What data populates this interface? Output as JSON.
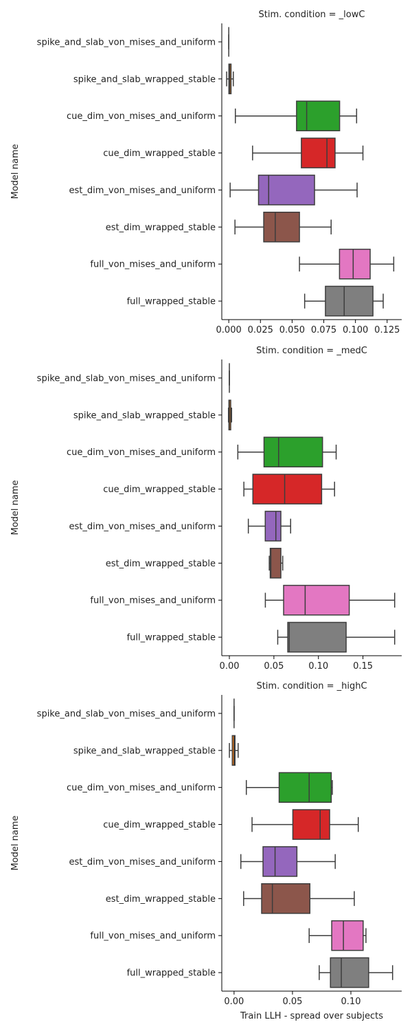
{
  "figure": {
    "ylabel": "Model name",
    "xlabel": "Train LLH - spread over subjects"
  },
  "colors": [
    "#1f77b4",
    "#ff7f0e",
    "#2ca02c",
    "#d62728",
    "#9467bd",
    "#8c564b",
    "#e377c2",
    "#7f7f7f"
  ],
  "chart_data": [
    {
      "type": "box",
      "title": "Stim. condition = _lowC",
      "ylabel": "Model name",
      "xlabel": "",
      "categories": [
        "spike_and_slab_von_mises_and_uniform",
        "spike_and_slab_wrapped_stable",
        "cue_dim_von_mises_and_uniform",
        "cue_dim_wrapped_stable",
        "est_dim_von_mises_and_uniform",
        "est_dim_wrapped_stable",
        "full_von_mises_and_uniform",
        "full_wrapped_stable"
      ],
      "xlim": [
        -0.0055,
        0.1365
      ],
      "xticks": [
        0.0,
        0.025,
        0.05,
        0.075,
        0.1,
        0.125
      ],
      "xtick_labels": [
        "0.000",
        "0.025",
        "0.050",
        "0.075",
        "0.100",
        "0.125"
      ],
      "boxes": [
        {
          "whislo": 0.0,
          "q1": 0.0,
          "med": 0.0,
          "q3": 0.0,
          "whishi": 0.0
        },
        {
          "whislo": -0.0017,
          "q1": 0.0001,
          "med": 0.0008,
          "q3": 0.0018,
          "whishi": 0.0036
        },
        {
          "whislo": 0.0052,
          "q1": 0.0535,
          "med": 0.0615,
          "q3": 0.0875,
          "whishi": 0.1009
        },
        {
          "whislo": 0.0188,
          "q1": 0.0573,
          "med": 0.0775,
          "q3": 0.0839,
          "whishi": 0.1059
        },
        {
          "whislo": 0.0011,
          "q1": 0.0235,
          "med": 0.0315,
          "q3": 0.0677,
          "whishi": 0.1013
        },
        {
          "whislo": 0.0049,
          "q1": 0.0276,
          "med": 0.0367,
          "q3": 0.0558,
          "whishi": 0.0808
        },
        {
          "whislo": 0.0558,
          "q1": 0.0874,
          "med": 0.0982,
          "q3": 0.1116,
          "whishi": 0.1302
        },
        {
          "whislo": 0.0599,
          "q1": 0.0763,
          "med": 0.0911,
          "q3": 0.1138,
          "whishi": 0.1219
        }
      ]
    },
    {
      "type": "box",
      "title": "Stim. condition = _medC",
      "ylabel": "Model name",
      "xlabel": "",
      "categories": [
        "spike_and_slab_von_mises_and_uniform",
        "spike_and_slab_wrapped_stable",
        "cue_dim_von_mises_and_uniform",
        "cue_dim_wrapped_stable",
        "est_dim_von_mises_and_uniform",
        "est_dim_wrapped_stable",
        "full_von_mises_and_uniform",
        "full_wrapped_stable"
      ],
      "xlim": [
        -0.0085,
        0.1935
      ],
      "xticks": [
        0.0,
        0.05,
        0.1,
        0.15
      ],
      "xtick_labels": [
        "0.00",
        "0.05",
        "0.10",
        "0.15"
      ],
      "boxes": [
        {
          "whislo": 0.0,
          "q1": 0.0,
          "med": 0.0,
          "q3": 0.0,
          "whishi": 0.0
        },
        {
          "whislo": -0.001,
          "q1": -0.0005,
          "med": 0.0,
          "q3": 0.0015,
          "whishi": 0.0025
        },
        {
          "whislo": 0.0095,
          "q1": 0.0389,
          "med": 0.0553,
          "q3": 0.1046,
          "whishi": 0.1199
        },
        {
          "whislo": 0.0163,
          "q1": 0.0264,
          "med": 0.0621,
          "q3": 0.1036,
          "whishi": 0.1181
        },
        {
          "whislo": 0.0213,
          "q1": 0.0403,
          "med": 0.0522,
          "q3": 0.0578,
          "whishi": 0.0688
        },
        {
          "whislo": 0.0448,
          "q1": 0.0459,
          "med": 0.0466,
          "q3": 0.0578,
          "whishi": 0.0599
        },
        {
          "whislo": 0.0404,
          "q1": 0.0609,
          "med": 0.0851,
          "q3": 0.1346,
          "whishi": 0.1856
        },
        {
          "whislo": 0.0543,
          "q1": 0.0656,
          "med": 0.0672,
          "q3": 0.1311,
          "whishi": 0.1856
        }
      ]
    },
    {
      "type": "box",
      "title": "Stim. condition = _highC",
      "ylabel": "Model name",
      "xlabel": "Train LLH - spread over subjects",
      "categories": [
        "spike_and_slab_von_mises_and_uniform",
        "spike_and_slab_wrapped_stable",
        "cue_dim_von_mises_and_uniform",
        "cue_dim_wrapped_stable",
        "est_dim_von_mises_and_uniform",
        "est_dim_wrapped_stable",
        "full_von_mises_and_uniform",
        "full_wrapped_stable"
      ],
      "xlim": [
        -0.0105,
        0.1435
      ],
      "xticks": [
        0.0,
        0.05,
        0.1
      ],
      "xtick_labels": [
        "0.00",
        "0.05",
        "0.10"
      ],
      "boxes": [
        {
          "whislo": 0.0,
          "q1": 0.0,
          "med": 0.0,
          "q3": 0.0,
          "whishi": 0.0
        },
        {
          "whislo": -0.004,
          "q1": -0.0015,
          "med": 0.0,
          "q3": 0.0008,
          "whishi": 0.0035
        },
        {
          "whislo": 0.0105,
          "q1": 0.0386,
          "med": 0.0643,
          "q3": 0.0832,
          "whishi": 0.0841
        },
        {
          "whislo": 0.0154,
          "q1": 0.0503,
          "med": 0.0737,
          "q3": 0.0818,
          "whishi": 0.1063
        },
        {
          "whislo": 0.0058,
          "q1": 0.0248,
          "med": 0.0351,
          "q3": 0.0538,
          "whishi": 0.0866
        },
        {
          "whislo": 0.0082,
          "q1": 0.0236,
          "med": 0.0328,
          "q3": 0.0649,
          "whishi": 0.1029
        },
        {
          "whislo": 0.0643,
          "q1": 0.0836,
          "med": 0.0936,
          "q3": 0.1105,
          "whishi": 0.1129
        },
        {
          "whislo": 0.0729,
          "q1": 0.0825,
          "med": 0.0918,
          "q3": 0.1152,
          "whishi": 0.1357
        }
      ]
    }
  ]
}
